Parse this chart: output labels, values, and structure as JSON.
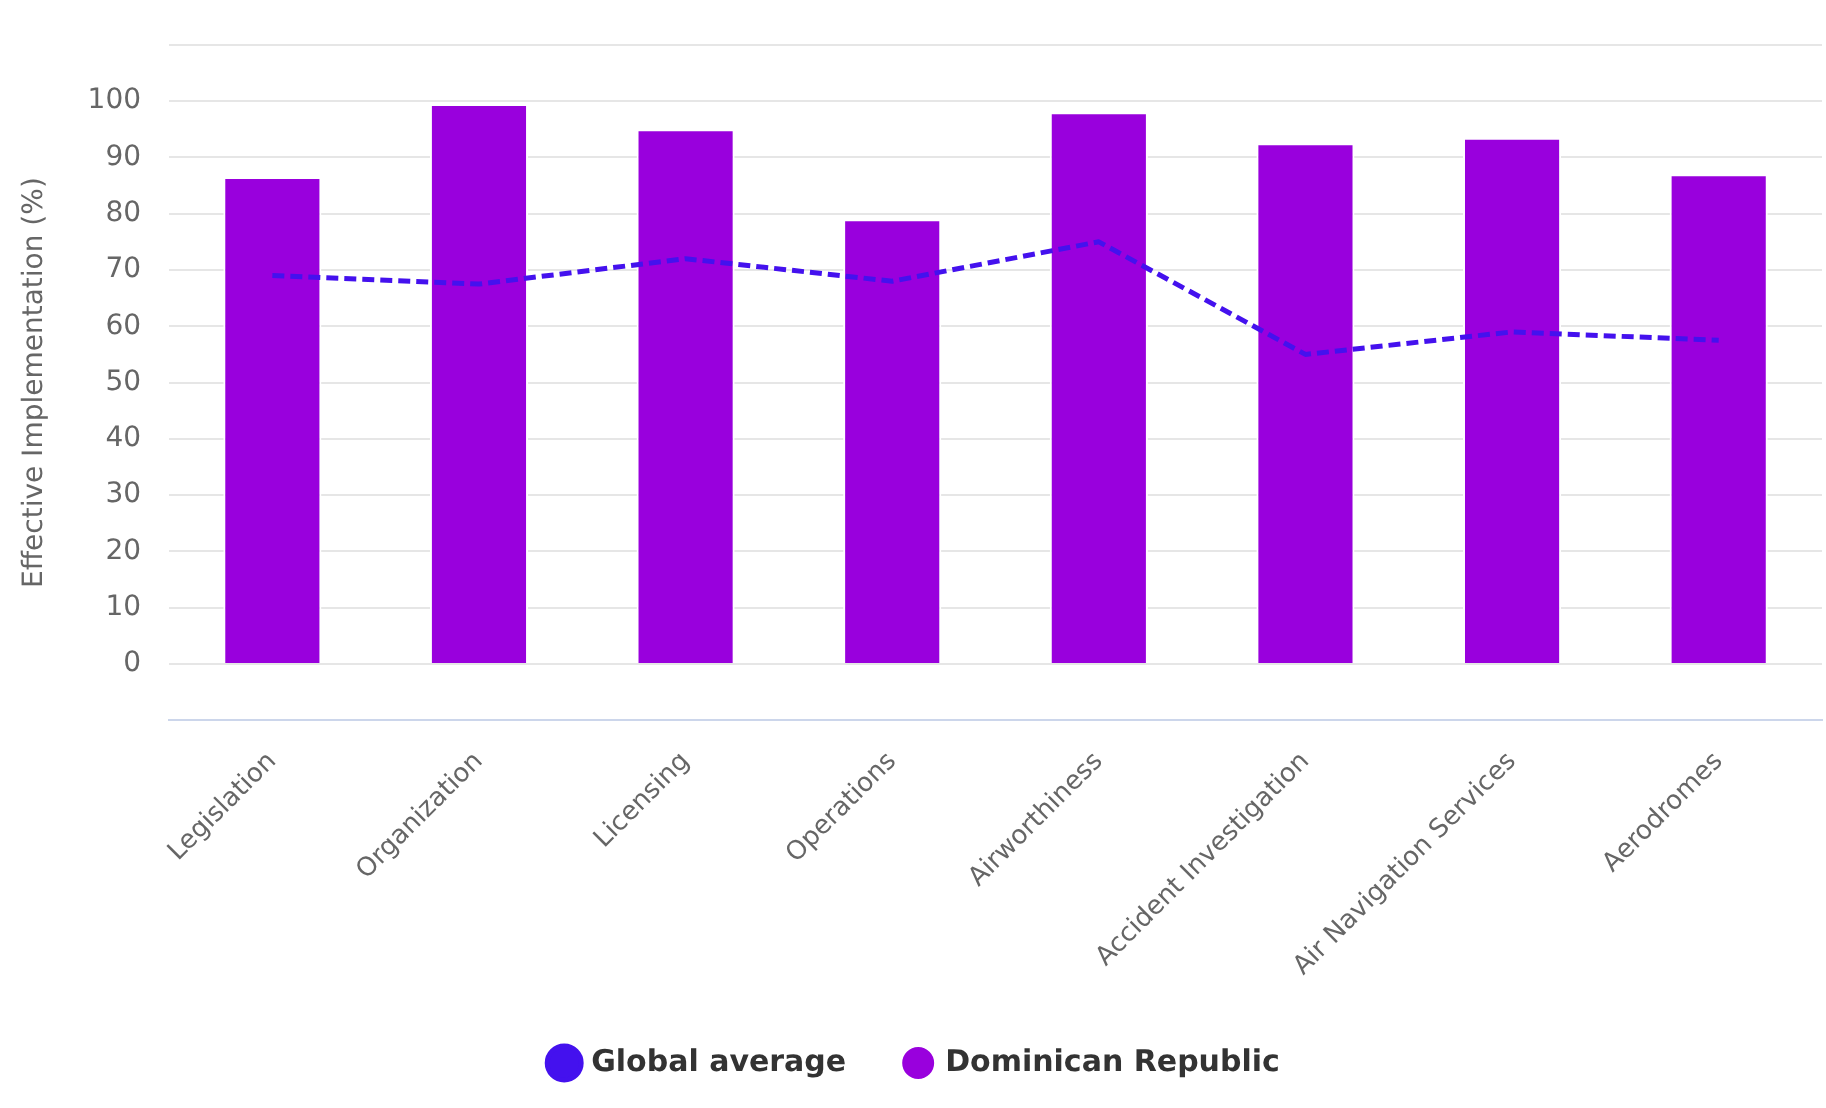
{
  "chart_data": {
    "type": "bar",
    "ylabel": "Effective Implementation (%)",
    "categories": [
      "Legislation",
      "Organization",
      "Licensing",
      "Operations",
      "Airworthiness",
      "Accident Investigation",
      "Air Navigation Services",
      "Aerodromes"
    ],
    "series": [
      {
        "name": "Global average",
        "type": "line",
        "color": "#4411ee",
        "values": [
          69,
          67.5,
          72,
          68,
          75,
          55,
          59,
          57.5
        ],
        "line_style": "dashed",
        "marker": "none"
      },
      {
        "name": "Dominican Republic",
        "color": "#9900dd",
        "values": [
          86.5,
          99.5,
          95,
          79,
          98,
          92.5,
          93.5,
          87
        ]
      }
    ],
    "ylim": [
      -10,
      110
    ],
    "yticks": [
      0,
      10,
      20,
      30,
      40,
      50,
      60,
      70,
      80,
      90,
      100,
      {
        "value": 110,
        "label": null
      }
    ],
    "grid": "y",
    "legend": "bottom"
  }
}
